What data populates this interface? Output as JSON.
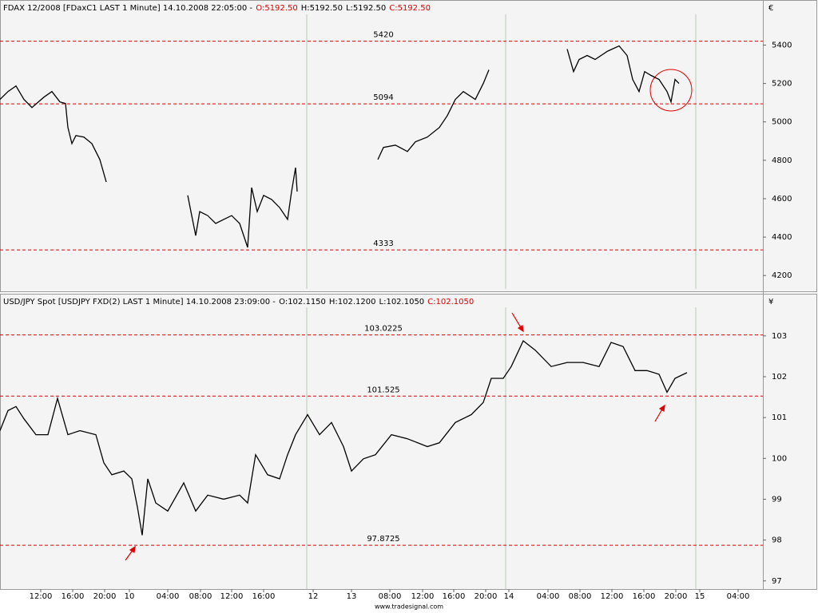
{
  "chart_data": [
    {
      "type": "line",
      "header": "FDAX 12/2008 [FDaxC1 LAST 1 Minute] 14.10.2008 22:05:00 -",
      "ohlc": [
        {
          "text": "O:5192.50",
          "color": "#e00000"
        },
        {
          "text": "H:5192.50",
          "color": "#000000"
        },
        {
          "text": "L:5192.50",
          "color": "#000000"
        },
        {
          "text": "C:5192.50",
          "color": "#e00000"
        }
      ],
      "currency": "€",
      "color": "#000000",
      "level_color": "#e00000",
      "levels": [
        5420,
        5094,
        4333
      ],
      "ylim": [
        4130,
        5560
      ],
      "yticks": [
        4200,
        4400,
        4600,
        4800,
        5000,
        5200,
        5400
      ],
      "xlim": [
        0,
        95.5
      ],
      "x": [
        0,
        1,
        2,
        3,
        4,
        5.5,
        6.5,
        7.5,
        8.2,
        8.5,
        9,
        9.5,
        10.5,
        11.5,
        12.5,
        13.3,
        null,
        23.5,
        24,
        24.5,
        25,
        26,
        27,
        28,
        29,
        30,
        31,
        31.5,
        32.2,
        33,
        34,
        35,
        36,
        36.5,
        37,
        37.2,
        null,
        47.3,
        48,
        49.5,
        51,
        52,
        53.5,
        55,
        56,
        57,
        58,
        59.5,
        60.5,
        61.2,
        null,
        71,
        71.8,
        72.5,
        73.5,
        74.5,
        76,
        77.5,
        78.5,
        79.2,
        80,
        80.7,
        81.5,
        82.5,
        83.5,
        84,
        84.5,
        85
      ],
      "values": [
        5117,
        5158,
        5187,
        5117,
        5075,
        5129,
        5158,
        5104,
        5096,
        4971,
        4887,
        4929,
        4921,
        4887,
        4804,
        4687,
        null,
        4617,
        4512,
        4408,
        4533,
        4512,
        4471,
        4492,
        4512,
        4471,
        4346,
        4658,
        4533,
        4617,
        4596,
        4554,
        4492,
        4637,
        4762,
        4637,
        null,
        4804,
        4867,
        4879,
        4846,
        4896,
        4921,
        4971,
        5033,
        5117,
        5158,
        5117,
        5200,
        5271,
        null,
        5379,
        5262,
        5325,
        5346,
        5325,
        5367,
        5396,
        5346,
        5221,
        5158,
        5262,
        5242,
        5221,
        5158,
        5104,
        5221,
        5200
      ]
    },
    {
      "type": "line",
      "header": "USD/JPY Spot [USDJPY FXD(2) LAST 1 Minute] 14.10.2008 23:09:00 -",
      "ohlc": [
        {
          "text": "O:102.1150",
          "color": "#000000"
        },
        {
          "text": "H:102.1200",
          "color": "#000000"
        },
        {
          "text": "L:102.1050",
          "color": "#000000"
        },
        {
          "text": "C:102.1050",
          "color": "#e00000"
        }
      ],
      "currency": "¥",
      "color": "#000000",
      "level_color": "#e00000",
      "levels": [
        103.0225,
        101.525,
        97.8725
      ],
      "ylim": [
        96.8,
        103.7
      ],
      "yticks": [
        97,
        98,
        99,
        100,
        101,
        102,
        103
      ],
      "xlim": [
        0,
        95.5
      ],
      "xticks": [
        {
          "value": 5.1,
          "label": "12:00"
        },
        {
          "value": 9.1,
          "label": "16:00"
        },
        {
          "value": 13.1,
          "label": "20:00"
        },
        {
          "value": 16.2,
          "label": "10"
        },
        {
          "value": 21,
          "label": "04:00"
        },
        {
          "value": 25.1,
          "label": "08:00"
        },
        {
          "value": 29,
          "label": "12:00"
        },
        {
          "value": 33,
          "label": "16:00"
        },
        {
          "value": 39.2,
          "label": "12"
        },
        {
          "value": 44,
          "label": "13"
        },
        {
          "value": 48.8,
          "label": "08:00"
        },
        {
          "value": 52.9,
          "label": "12:00"
        },
        {
          "value": 56.8,
          "label": "16:00"
        },
        {
          "value": 60.8,
          "label": "20:00"
        },
        {
          "value": 63.7,
          "label": "14"
        },
        {
          "value": 68.6,
          "label": "04:00"
        },
        {
          "value": 72.6,
          "label": "08:00"
        },
        {
          "value": 76.6,
          "label": "12:00"
        },
        {
          "value": 80.6,
          "label": "16:00"
        },
        {
          "value": 84.6,
          "label": "20:00"
        },
        {
          "value": 87.6,
          "label": "15"
        },
        {
          "value": 92.4,
          "label": "04:00"
        }
      ],
      "x": [
        0,
        1,
        2,
        3,
        4.5,
        6,
        7.2,
        8.5,
        10,
        12,
        13,
        14,
        15.5,
        16.5,
        17.2,
        17.8,
        18.5,
        19.5,
        21,
        23,
        24.5,
        26,
        28,
        30,
        31,
        32,
        33.5,
        35,
        36,
        37,
        38.5,
        40,
        41.5,
        43,
        44,
        45.5,
        47,
        49,
        51,
        53.5,
        55,
        57,
        59,
        60.5,
        61.5,
        63,
        64,
        65.5,
        67,
        69,
        71,
        73,
        75,
        76.5,
        78,
        79.5,
        81,
        82.5,
        83.5,
        84.5,
        86
      ],
      "values": [
        100.68,
        101.17,
        101.27,
        100.97,
        100.58,
        100.58,
        101.47,
        100.58,
        100.68,
        100.58,
        99.89,
        99.6,
        99.69,
        99.5,
        98.81,
        98.12,
        99.5,
        98.91,
        98.71,
        99.4,
        98.71,
        99.1,
        99.0,
        99.1,
        98.91,
        100.09,
        99.6,
        99.5,
        100.09,
        100.58,
        101.07,
        100.58,
        100.88,
        100.29,
        99.69,
        99.99,
        100.09,
        100.58,
        100.48,
        100.29,
        100.38,
        100.88,
        101.07,
        101.37,
        101.96,
        101.96,
        102.25,
        102.88,
        102.65,
        102.25,
        102.35,
        102.35,
        102.25,
        102.84,
        102.74,
        102.15,
        102.15,
        102.06,
        101.62,
        101.96,
        102.1
      ]
    }
  ],
  "footer": "www.tradesignal.com"
}
